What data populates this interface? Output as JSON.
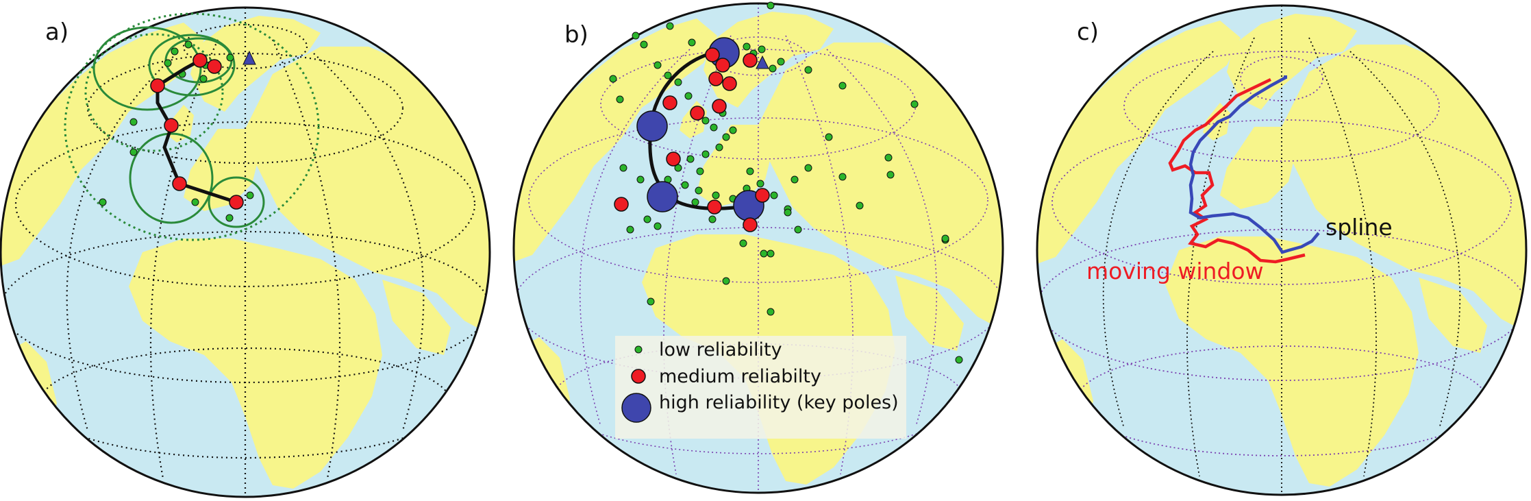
{
  "colors": {
    "ocean": "#c9e9f2",
    "land": "#f7f58b",
    "graticule": "#111111",
    "small_circle": "#7a3fb0",
    "low_reliability": "#2bb52b",
    "medium_reliability": "#ee1c24",
    "high_reliability": "#3f46ad",
    "apwp_path": "#111111",
    "confidence_circle": "#2a8a3a",
    "moving_window": "#ee1c24",
    "spline": "#3848b8",
    "triangle": "#3f46ad"
  },
  "panels": [
    {
      "letter": "a)"
    },
    {
      "letter": "b)"
    },
    {
      "letter": "c)"
    }
  ],
  "legend": {
    "low": "low reliability",
    "medium": "medium reliabilty",
    "high": "high reliability (key poles)"
  },
  "annotations": {
    "moving_window": "moving window",
    "spline": "spline"
  },
  "icons": {
    "reference_pole": "triangle-icon"
  }
}
